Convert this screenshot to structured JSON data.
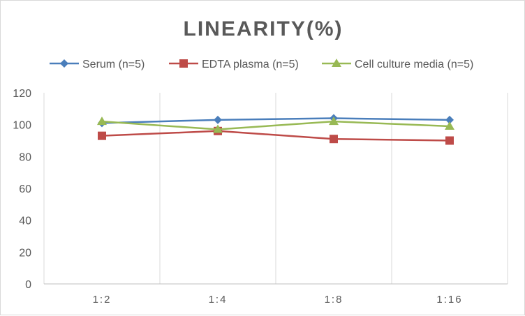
{
  "chart_data": {
    "type": "line",
    "title": "LINEARITY(%)",
    "xlabel": "",
    "ylabel": "",
    "categories": [
      "1:2",
      "1:4",
      "1:8",
      "1:16"
    ],
    "ylim": [
      0,
      120
    ],
    "yticks": [
      0,
      20,
      40,
      60,
      80,
      100,
      120
    ],
    "grid": "vertical",
    "legend_position": "top",
    "series": [
      {
        "name": "Serum (n=5)",
        "values": [
          101,
          103,
          104,
          103
        ],
        "color": "#4a7ebb",
        "marker": "diamond"
      },
      {
        "name": "EDTA plasma (n=5)",
        "values": [
          93,
          96,
          91,
          90
        ],
        "color": "#be4b48",
        "marker": "square"
      },
      {
        "name": "Cell culture media (n=5)",
        "values": [
          102,
          97,
          102,
          99
        ],
        "color": "#98b954",
        "marker": "triangle"
      }
    ]
  }
}
